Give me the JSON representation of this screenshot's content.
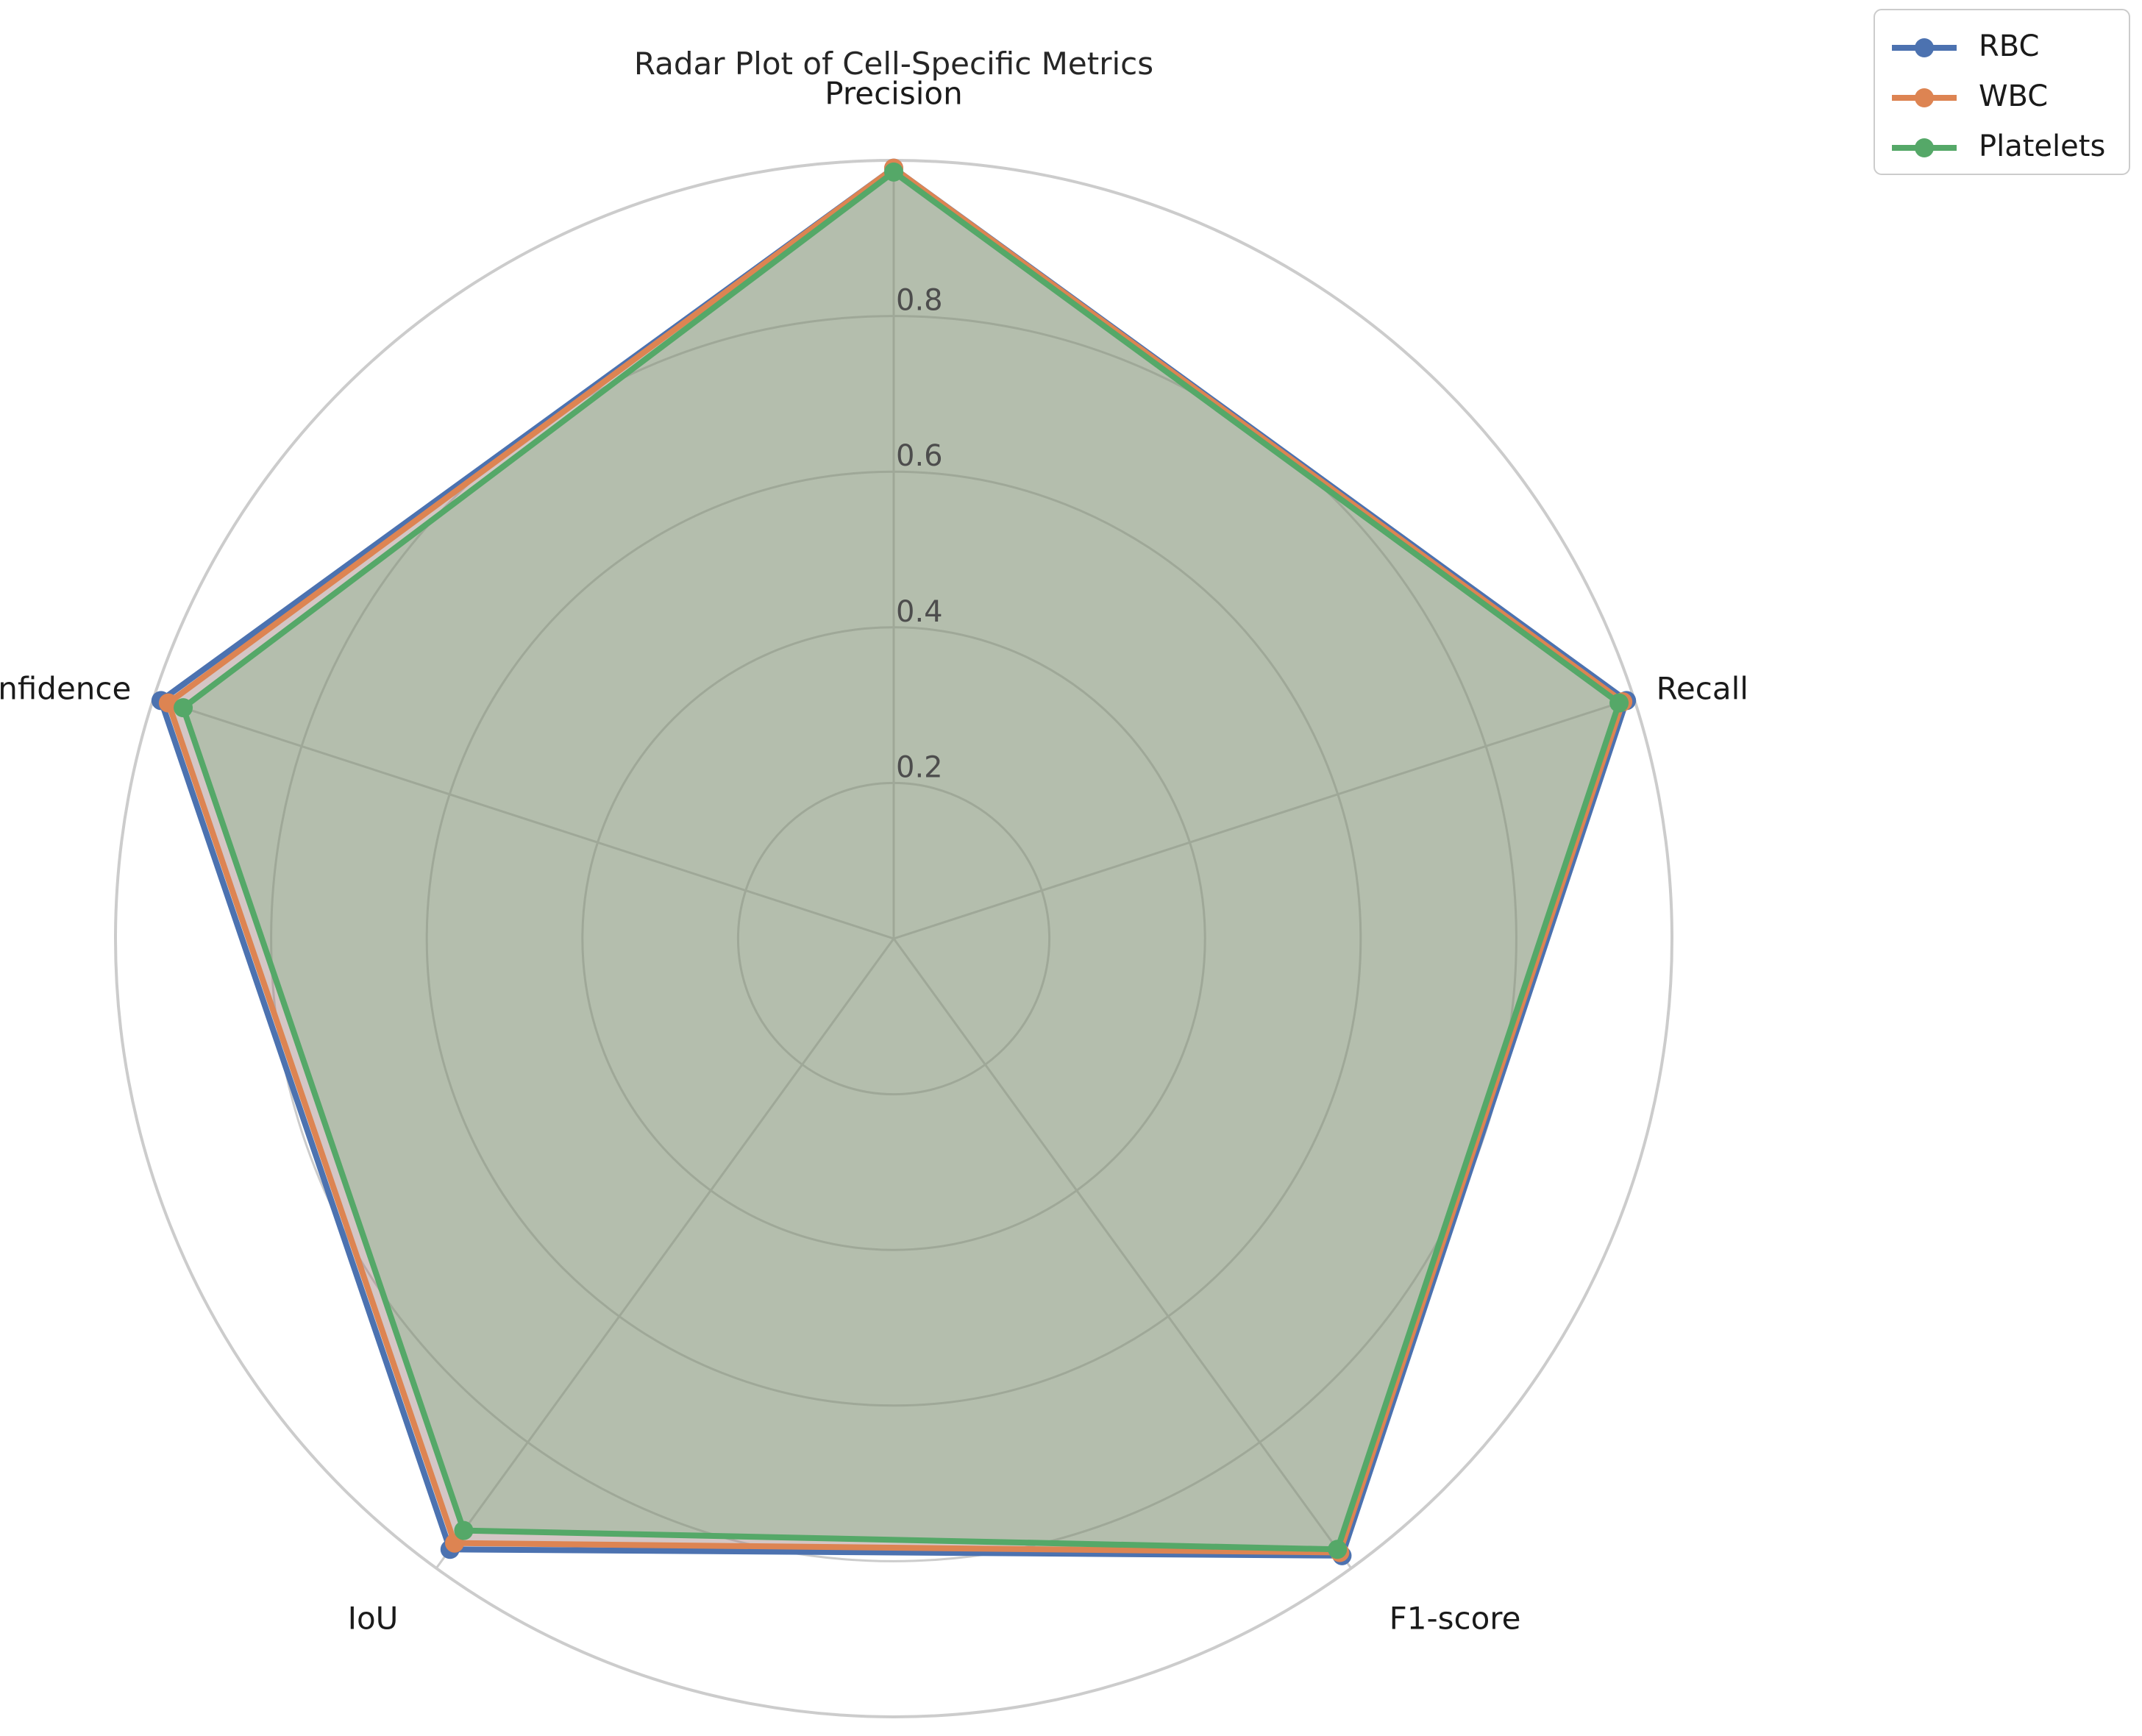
{
  "chart_data": {
    "type": "radar",
    "title": "Radar Plot of Cell-Specific Metrics",
    "axes": [
      "Precision",
      "Recall",
      "F1-score",
      "IoU",
      "Confidence"
    ],
    "rlim": [
      0,
      1.0
    ],
    "rticks": [
      0.2,
      0.4,
      0.6,
      0.8
    ],
    "rtick_labels": [
      "0.2",
      "0.4",
      "0.6",
      "0.8"
    ],
    "grid": true,
    "legend_position": "top-right",
    "series": [
      {
        "name": "RBC",
        "color": "#4c72b0",
        "values": [
          0.99,
          0.99,
          0.98,
          0.97,
          0.99
        ]
      },
      {
        "name": "WBC",
        "color": "#dd8452",
        "values": [
          0.99,
          0.985,
          0.975,
          0.96,
          0.98
        ]
      },
      {
        "name": "Platelets",
        "color": "#55a868",
        "values": [
          0.985,
          0.98,
          0.97,
          0.94,
          0.96
        ]
      }
    ]
  }
}
